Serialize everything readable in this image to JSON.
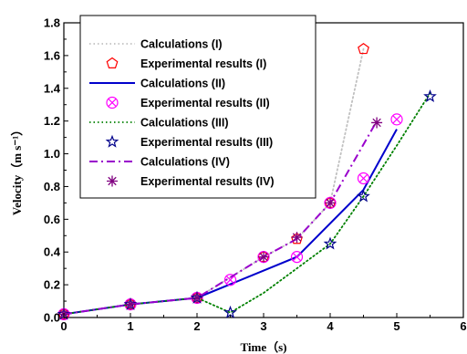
{
  "chart_data": {
    "type": "line",
    "xlabel": "Time（s)",
    "ylabel": "Velocity（m s⁻¹）",
    "xlim": [
      0,
      6
    ],
    "ylim": [
      0,
      1.8
    ],
    "xticks": [
      "0",
      "1",
      "2",
      "3",
      "4",
      "5",
      "6"
    ],
    "yticks": [
      "0.0",
      "0.2",
      "0.4",
      "0.6",
      "0.8",
      "1.0",
      "1.2",
      "1.4",
      "1.6",
      "1.8"
    ],
    "grid": false,
    "legend_position": "top-left",
    "series": [
      {
        "name": "Calculations (I)",
        "kind": "line",
        "style": "dotted",
        "color": "#c0c0c0",
        "x": [
          0,
          1,
          2,
          3,
          3.5,
          4,
          4.5
        ],
        "y": [
          0.02,
          0.08,
          0.12,
          0.37,
          0.48,
          0.7,
          1.64
        ]
      },
      {
        "name": "Experimental results (I)",
        "kind": "markers",
        "marker": "pentagon",
        "color": "#ff0000",
        "x": [
          0,
          1,
          2,
          3,
          3.5,
          4,
          4.5
        ],
        "y": [
          0.02,
          0.08,
          0.12,
          0.37,
          0.48,
          0.7,
          1.64
        ]
      },
      {
        "name": "Calculations (II)",
        "kind": "line",
        "style": "solid",
        "color": "#0000cc",
        "x": [
          0,
          1,
          2,
          3.5,
          4.5,
          5
        ],
        "y": [
          0.02,
          0.08,
          0.12,
          0.37,
          0.78,
          1.15
        ]
      },
      {
        "name": "Experimental results (II)",
        "kind": "markers",
        "marker": "circle-x",
        "color": "#ff00ff",
        "x": [
          0,
          1,
          2,
          2.5,
          3,
          3.5,
          4,
          4.5,
          5
        ],
        "y": [
          0.02,
          0.08,
          0.12,
          0.23,
          0.37,
          0.37,
          0.7,
          0.85,
          1.21
        ]
      },
      {
        "name": "Calculations (III)",
        "kind": "line",
        "style": "dotted",
        "color": "#008000",
        "x": [
          0,
          1,
          2,
          2.5,
          3,
          3.5,
          4,
          4.5,
          5,
          5.5
        ],
        "y": [
          0.02,
          0.08,
          0.12,
          0.03,
          0.15,
          0.3,
          0.45,
          0.74,
          1.05,
          1.37
        ]
      },
      {
        "name": "Experimental results (III)",
        "kind": "markers",
        "marker": "star",
        "color": "#00008b",
        "x": [
          0,
          1,
          2,
          2.5,
          4,
          4.5,
          5.5
        ],
        "y": [
          0.02,
          0.08,
          0.12,
          0.03,
          0.45,
          0.74,
          1.35
        ]
      },
      {
        "name": "Calculations (IV)",
        "kind": "line",
        "style": "dashdot",
        "color": "#9900cc",
        "x": [
          0,
          1,
          2,
          3,
          3.5,
          4,
          4.7
        ],
        "y": [
          0.02,
          0.08,
          0.12,
          0.37,
          0.48,
          0.7,
          1.2
        ]
      },
      {
        "name": "Experimental results (IV)",
        "kind": "markers",
        "marker": "asterisk",
        "color": "#800080",
        "x": [
          0,
          1,
          2,
          3,
          3.5,
          4,
          4.7
        ],
        "y": [
          0.02,
          0.08,
          0.12,
          0.37,
          0.49,
          0.7,
          1.19
        ]
      }
    ]
  }
}
